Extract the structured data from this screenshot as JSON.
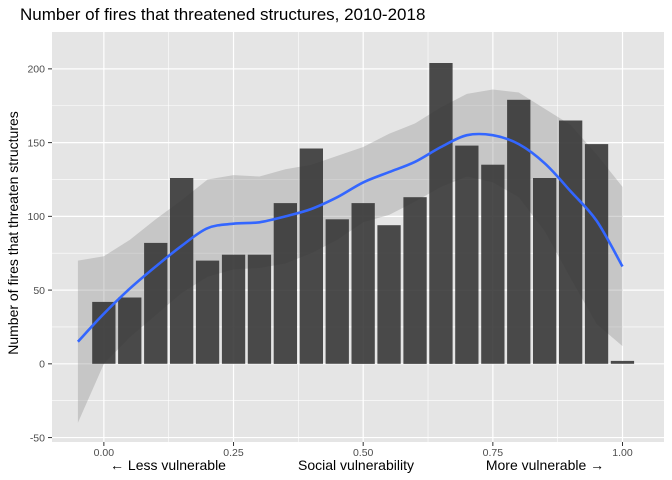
{
  "chart_data": {
    "type": "bar",
    "title": "Number of fires that threatened structures, 2010-2018",
    "xlabel": "Social vulnerability",
    "ylabel": "Number of fires that threaten structures",
    "x_annotation_left": "← Less vulnerable",
    "x_annotation_right": "More vulnerable →",
    "xlim": [
      -0.1,
      1.08
    ],
    "ylim": [
      -53,
      225
    ],
    "x_ticks": [
      0,
      0.25,
      0.5,
      0.75,
      1.0
    ],
    "x_tick_labels": [
      "0.00",
      "0.25",
      "0.50",
      "0.75",
      "1.00"
    ],
    "y_ticks": [
      -50,
      0,
      50,
      100,
      150,
      200
    ],
    "y_tick_labels": [
      "-50",
      "0",
      "50",
      "100",
      "150",
      "200"
    ],
    "grid": true,
    "bar_width": 0.045,
    "series": [
      {
        "type": "bar",
        "x": [
          0.0,
          0.05,
          0.1,
          0.15,
          0.2,
          0.25,
          0.3,
          0.35,
          0.4,
          0.45,
          0.5,
          0.55,
          0.6,
          0.65,
          0.7,
          0.75,
          0.8,
          0.85,
          0.9,
          0.95,
          1.0
        ],
        "values": [
          42,
          45,
          82,
          126,
          70,
          74,
          74,
          109,
          146,
          98,
          109,
          94,
          113,
          204,
          148,
          135,
          179,
          126,
          165,
          149,
          2
        ]
      },
      {
        "type": "smooth",
        "x": [
          -0.05,
          0.0,
          0.05,
          0.1,
          0.15,
          0.2,
          0.25,
          0.3,
          0.35,
          0.4,
          0.45,
          0.5,
          0.55,
          0.6,
          0.65,
          0.7,
          0.75,
          0.8,
          0.85,
          0.9,
          0.95,
          1.0
        ],
        "values": [
          15,
          34,
          51,
          66,
          80,
          92,
          95,
          96,
          100,
          105,
          113,
          123,
          130,
          137,
          147,
          155,
          155,
          149,
          136,
          117,
          97,
          66
        ],
        "ci_lower": [
          -40,
          0,
          18,
          33,
          48,
          59,
          64,
          65,
          68,
          75,
          84,
          96,
          101,
          110,
          120,
          127,
          123,
          113,
          90,
          58,
          27,
          12
        ],
        "ci_upper": [
          70,
          73,
          84,
          98,
          111,
          125,
          128,
          127,
          132,
          135,
          141,
          147,
          156,
          163,
          174,
          183,
          186,
          184,
          173,
          162,
          142,
          120
        ]
      }
    ],
    "colors": {
      "panel_background": "#e5e5e5",
      "grid_major": "#ffffff",
      "bar_fill": "#333333",
      "bar_opacity": 0.88,
      "smooth_line": "#3366ff",
      "ci_band": "#999999",
      "ci_opacity": 0.4
    }
  }
}
